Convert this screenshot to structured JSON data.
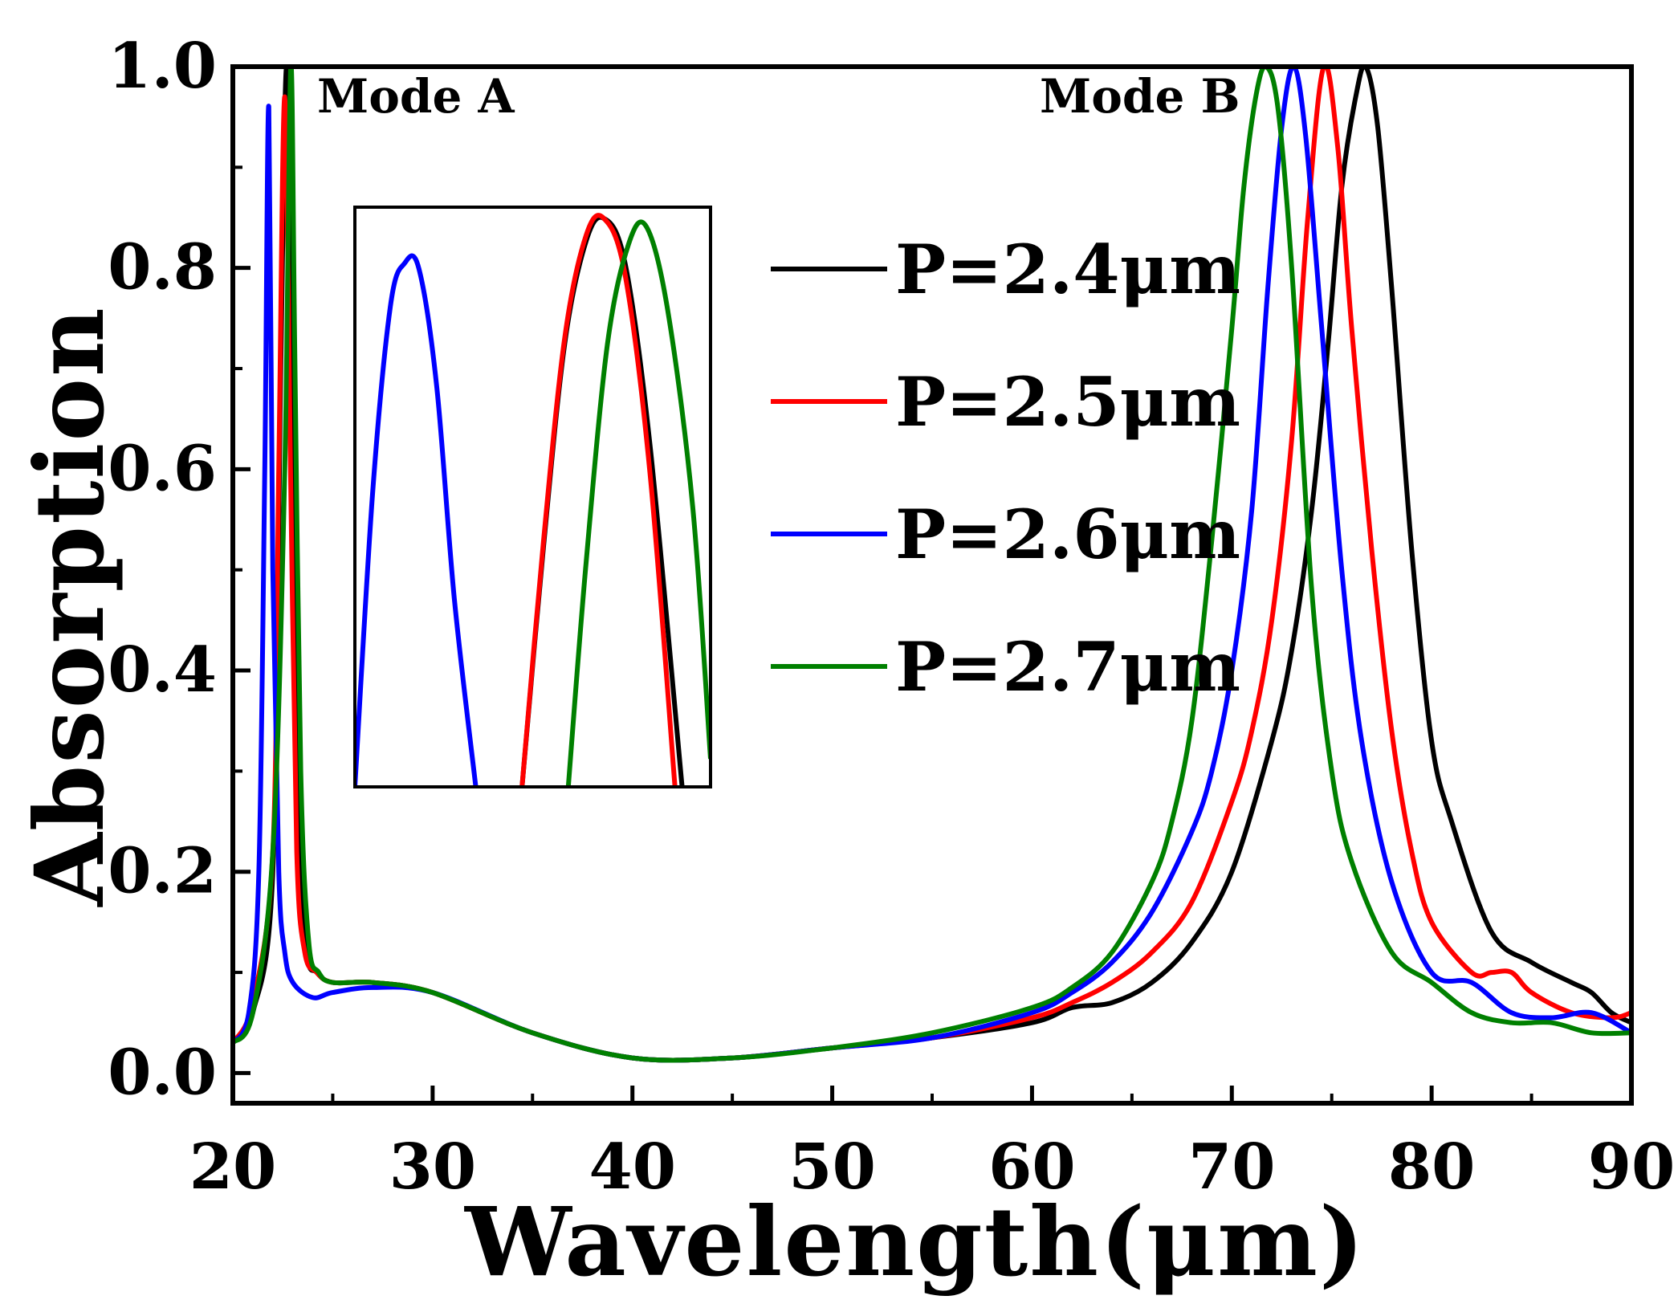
{
  "chart_data": {
    "type": "line",
    "title": "",
    "xlabel": "Wavelength(μm)",
    "ylabel": "Absorption",
    "xlim": [
      20,
      90
    ],
    "ylim": [
      -0.03,
      1.0
    ],
    "xticks": [
      "20",
      "30",
      "40",
      "50",
      "60",
      "70",
      "80",
      "90"
    ],
    "yticks": [
      "0.0",
      "0.2",
      "0.4",
      "0.6",
      "0.8",
      "1.0"
    ],
    "annotations": [
      "Mode A",
      "Mode B"
    ],
    "legend_position": "upper-center",
    "series": [
      {
        "name": "P=2.4μm",
        "color": "#000000",
        "x": [
          20,
          21,
          22,
          22.4,
          22.7,
          23.0,
          23.3,
          23.7,
          24.2,
          25,
          27,
          30,
          35,
          40,
          45,
          50,
          55,
          60,
          62,
          64,
          66,
          68,
          70,
          72,
          73,
          74,
          74.8,
          75.5,
          76.2,
          76.7,
          77.3,
          78,
          79,
          80,
          81,
          83,
          85,
          87,
          88,
          89,
          90
        ],
        "y": [
          0.03,
          0.06,
          0.2,
          0.7,
          1.0,
          0.65,
          0.25,
          0.12,
          0.1,
          0.09,
          0.09,
          0.08,
          0.04,
          0.015,
          0.015,
          0.025,
          0.035,
          0.05,
          0.065,
          0.07,
          0.09,
          0.13,
          0.2,
          0.33,
          0.42,
          0.56,
          0.72,
          0.88,
          0.97,
          1.0,
          0.94,
          0.78,
          0.52,
          0.33,
          0.25,
          0.14,
          0.11,
          0.09,
          0.08,
          0.06,
          0.05
        ]
      },
      {
        "name": "P=2.5μm",
        "color": "#ff0000",
        "x": [
          20,
          21,
          22,
          22.3,
          22.6,
          22.9,
          23.2,
          23.6,
          24.2,
          25,
          27,
          30,
          35,
          40,
          45,
          50,
          55,
          60,
          62,
          64,
          66,
          68,
          70,
          71,
          72,
          73,
          73.8,
          74.6,
          75.3,
          76,
          77,
          78,
          79,
          80,
          82,
          83,
          84,
          85,
          87,
          89,
          90
        ],
        "y": [
          0.03,
          0.07,
          0.22,
          0.6,
          0.97,
          0.58,
          0.22,
          0.12,
          0.1,
          0.09,
          0.09,
          0.08,
          0.04,
          0.015,
          0.015,
          0.025,
          0.035,
          0.055,
          0.07,
          0.09,
          0.12,
          0.17,
          0.27,
          0.34,
          0.45,
          0.63,
          0.85,
          1.0,
          0.92,
          0.74,
          0.52,
          0.34,
          0.22,
          0.15,
          0.1,
          0.1,
          0.1,
          0.08,
          0.06,
          0.055,
          0.06
        ]
      },
      {
        "name": "P=2.6μm",
        "color": "#0000ff",
        "x": [
          20,
          20.8,
          21.3,
          21.6,
          21.8,
          22.0,
          22.3,
          22.6,
          23,
          24,
          25,
          27,
          30,
          35,
          40,
          45,
          50,
          55,
          60,
          62,
          64,
          66,
          68,
          69,
          70,
          71,
          71.8,
          72.5,
          73.1,
          73.7,
          74.5,
          75.5,
          76.5,
          78,
          80,
          82,
          84,
          86,
          88,
          90
        ],
        "y": [
          0.03,
          0.06,
          0.2,
          0.6,
          0.96,
          0.5,
          0.2,
          0.12,
          0.09,
          0.075,
          0.08,
          0.085,
          0.08,
          0.04,
          0.015,
          0.015,
          0.025,
          0.035,
          0.06,
          0.08,
          0.11,
          0.16,
          0.24,
          0.3,
          0.4,
          0.56,
          0.78,
          0.94,
          1.0,
          0.93,
          0.74,
          0.5,
          0.33,
          0.19,
          0.1,
          0.09,
          0.06,
          0.055,
          0.06,
          0.04
        ]
      },
      {
        "name": "P=2.7μm",
        "color": "#008000",
        "x": [
          20,
          21,
          22,
          22.6,
          22.9,
          23.1,
          23.4,
          23.8,
          24.3,
          25,
          27,
          30,
          35,
          40,
          45,
          50,
          55,
          60,
          62,
          64,
          66,
          67,
          68,
          69,
          70,
          70.6,
          71.2,
          71.7,
          72.3,
          73,
          74,
          75,
          76,
          78,
          80,
          82,
          84,
          86,
          88,
          90
        ],
        "y": [
          0.03,
          0.06,
          0.22,
          0.6,
          1.0,
          0.72,
          0.3,
          0.13,
          0.1,
          0.09,
          0.09,
          0.08,
          0.04,
          0.015,
          0.015,
          0.025,
          0.04,
          0.065,
          0.085,
          0.12,
          0.19,
          0.25,
          0.35,
          0.53,
          0.74,
          0.88,
          0.97,
          1.0,
          0.96,
          0.8,
          0.48,
          0.3,
          0.21,
          0.12,
          0.09,
          0.06,
          0.05,
          0.05,
          0.04,
          0.04
        ]
      }
    ],
    "inset": {
      "description": "zoom of Mode A peaks",
      "series": [
        {
          "name": "P=2.4μm",
          "color": "#000000",
          "x": [
            0.47,
            0.53,
            0.59,
            0.65,
            0.7,
            0.76,
            0.83,
            0.92
          ],
          "y": [
            0.0,
            0.42,
            0.78,
            0.96,
            1.0,
            0.92,
            0.6,
            0.0
          ]
        },
        {
          "name": "P=2.5μm",
          "color": "#ff0000",
          "x": [
            0.47,
            0.53,
            0.59,
            0.65,
            0.7,
            0.76,
            0.83,
            0.9
          ],
          "y": [
            0.0,
            0.43,
            0.79,
            0.97,
            1.0,
            0.9,
            0.55,
            0.0
          ]
        },
        {
          "name": "P=2.6μm",
          "color": "#0000ff",
          "x": [
            0.0,
            0.05,
            0.1,
            0.14,
            0.18,
            0.23,
            0.28,
            0.34
          ],
          "y": [
            0.0,
            0.55,
            0.9,
            0.98,
            0.97,
            0.75,
            0.35,
            0.0
          ]
        },
        {
          "name": "P=2.7μm",
          "color": "#008000",
          "x": [
            0.6,
            0.65,
            0.71,
            0.77,
            0.82,
            0.88,
            0.95,
            1.0
          ],
          "y": [
            0.0,
            0.4,
            0.79,
            0.97,
            1.0,
            0.85,
            0.5,
            0.05
          ]
        }
      ]
    }
  }
}
